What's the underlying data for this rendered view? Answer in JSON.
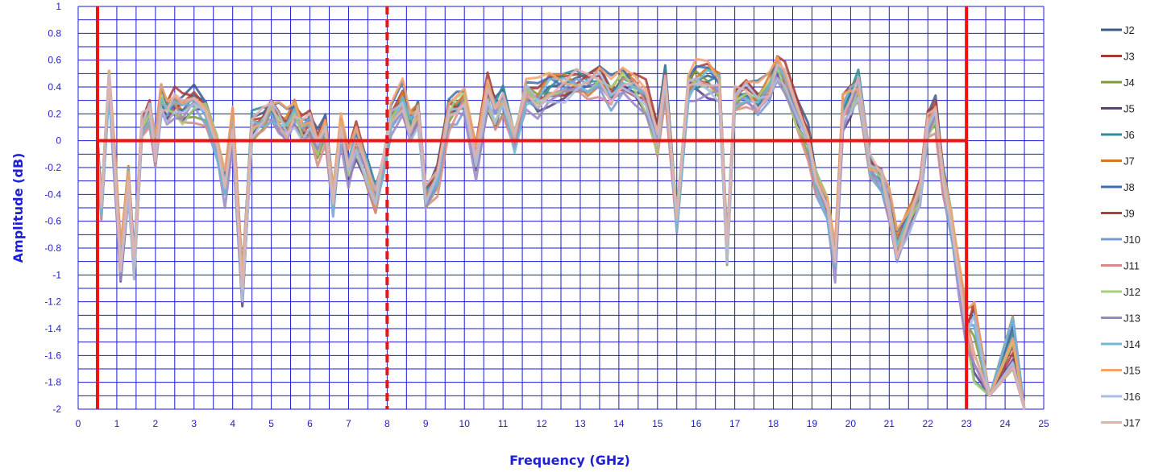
{
  "chart_data": {
    "type": "line",
    "title": "",
    "xlabel": "Frequency (GHz)",
    "ylabel": "Amplitude (dB)",
    "xlim": [
      0,
      25
    ],
    "ylim": [
      -2,
      1
    ],
    "xticks": [
      0,
      1,
      2,
      3,
      4,
      5,
      6,
      7,
      8,
      9,
      10,
      11,
      12,
      13,
      14,
      15,
      16,
      17,
      18,
      19,
      20,
      21,
      22,
      23,
      24,
      25
    ],
    "yticks": [
      1,
      0.8,
      0.6,
      0.4,
      0.2,
      0,
      -0.2,
      -0.4,
      -0.6,
      -0.8,
      -1,
      -1.2,
      -1.4,
      -1.6,
      -1.8,
      -2
    ],
    "grid": true,
    "legend_position": "right",
    "reference_lines": [
      {
        "orientation": "vertical",
        "x": 0.5,
        "style": "solid",
        "color": "#ee1111"
      },
      {
        "orientation": "vertical",
        "x": 8,
        "style": "dashed",
        "color": "#ee1111"
      },
      {
        "orientation": "vertical",
        "x": 23,
        "style": "solid",
        "color": "#ee1111"
      },
      {
        "orientation": "horizontal",
        "y": 0,
        "x_range": [
          0.5,
          23
        ],
        "style": "solid",
        "color": "#ee1111"
      }
    ],
    "base_curve": {
      "x": [
        0.5,
        0.6,
        0.8,
        0.95,
        1.1,
        1.3,
        1.45,
        1.65,
        1.85,
        2.0,
        2.15,
        2.3,
        2.5,
        2.7,
        3.0,
        3.3,
        3.6,
        3.8,
        4.0,
        4.25,
        4.5,
        4.8,
        5.0,
        5.2,
        5.4,
        5.6,
        5.8,
        6.0,
        6.2,
        6.4,
        6.6,
        6.8,
        7.0,
        7.2,
        7.5,
        7.7,
        7.9,
        8.1,
        8.4,
        8.6,
        8.8,
        9.0,
        9.3,
        9.6,
        9.8,
        10.0,
        10.3,
        10.6,
        10.8,
        11.0,
        11.3,
        11.6,
        11.9,
        12.2,
        12.6,
        12.9,
        13.2,
        13.5,
        13.8,
        14.1,
        14.4,
        14.7,
        15.0,
        15.2,
        15.5,
        15.8,
        16.0,
        16.3,
        16.6,
        16.8,
        17.0,
        17.3,
        17.6,
        17.9,
        18.1,
        18.3,
        18.6,
        18.9,
        19.1,
        19.4,
        19.6,
        19.8,
        20.0,
        20.2,
        20.5,
        20.8,
        21.0,
        21.2,
        21.5,
        21.8,
        22.0,
        22.2,
        22.4,
        22.6,
        22.8,
        23.0
      ],
      "y": [
        -0.1,
        -0.5,
        0.45,
        -0.2,
        -0.92,
        -0.3,
        -0.95,
        0.1,
        0.2,
        -0.1,
        0.3,
        0.22,
        0.27,
        0.22,
        0.28,
        0.22,
        -0.05,
        -0.35,
        0.1,
        -1.1,
        0.1,
        0.15,
        0.22,
        0.15,
        0.1,
        0.2,
        0.08,
        0.1,
        -0.05,
        0.1,
        -0.45,
        0.1,
        -0.2,
        0.0,
        -0.25,
        -0.45,
        -0.18,
        0.15,
        0.3,
        0.1,
        0.2,
        -0.45,
        -0.3,
        0.2,
        0.25,
        0.3,
        -0.15,
        0.35,
        0.2,
        0.3,
        0.0,
        0.35,
        0.3,
        0.38,
        0.4,
        0.42,
        0.4,
        0.45,
        0.35,
        0.45,
        0.4,
        0.3,
        0.0,
        0.45,
        -0.6,
        0.4,
        0.45,
        0.45,
        0.4,
        -0.85,
        0.3,
        0.35,
        0.3,
        0.4,
        0.55,
        0.45,
        0.2,
        0.0,
        -0.3,
        -0.5,
        -0.9,
        0.2,
        0.3,
        0.4,
        -0.2,
        -0.3,
        -0.5,
        -0.8,
        -0.6,
        -0.4,
        0.1,
        0.2,
        -0.3,
        -0.6,
        -1.0,
        -1.4
      ]
    },
    "series": [
      {
        "name": "J2",
        "color": "#3b5a8a",
        "offset": 0.04,
        "seed": 1
      },
      {
        "name": "J3",
        "color": "#a83a36",
        "offset": 0.06,
        "seed": 2
      },
      {
        "name": "J4",
        "color": "#7f9a3a",
        "offset": -0.02,
        "seed": 3
      },
      {
        "name": "J5",
        "color": "#5b3f82",
        "offset": -0.04,
        "seed": 4
      },
      {
        "name": "J6",
        "color": "#2f8a9e",
        "offset": 0.03,
        "seed": 5
      },
      {
        "name": "J7",
        "color": "#d17a2a",
        "offset": 0.02,
        "seed": 6
      },
      {
        "name": "J8",
        "color": "#3e6fb0",
        "offset": 0.05,
        "seed": 7
      },
      {
        "name": "J9",
        "color": "#b03f3a",
        "offset": 0.01,
        "seed": 8
      },
      {
        "name": "J10",
        "color": "#7a9bd6",
        "offset": -0.03,
        "seed": 9
      },
      {
        "name": "J11",
        "color": "#d88a88",
        "offset": -0.05,
        "seed": 10
      },
      {
        "name": "J12",
        "color": "#a8cf7a",
        "offset": -0.01,
        "seed": 11
      },
      {
        "name": "J13",
        "color": "#9a86c4",
        "offset": -0.06,
        "seed": 12
      },
      {
        "name": "J14",
        "color": "#6fb9d8",
        "offset": 0.0,
        "seed": 13
      },
      {
        "name": "J15",
        "color": "#f5a46a",
        "offset": 0.07,
        "seed": 14
      },
      {
        "name": "J16",
        "color": "#aabedf",
        "offset": -0.02,
        "seed": 15
      },
      {
        "name": "J17",
        "color": "#e0b3b0",
        "offset": 0.02,
        "seed": 16
      }
    ]
  }
}
